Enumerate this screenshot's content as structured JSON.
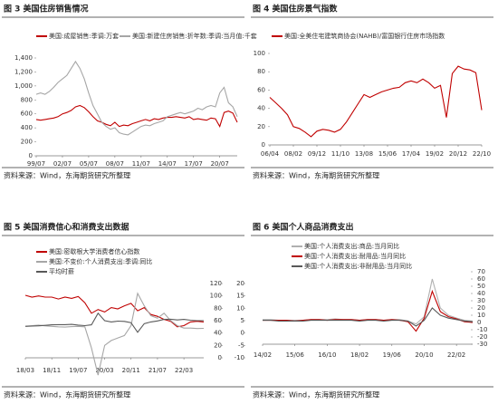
{
  "chart_data": [
    {
      "type": "line",
      "title": "图 3   美国住房销售情况",
      "source": "资料来源：Wind，东海期货研究所整理",
      "categories": [
        "99/07",
        null,
        null,
        null,
        null,
        null,
        "02/07",
        null,
        null,
        null,
        null,
        null,
        "05/07",
        null,
        null,
        null,
        null,
        null,
        "08/07",
        null,
        null,
        null,
        null,
        null,
        "11/07",
        null,
        null,
        null,
        null,
        null,
        "14/07",
        null,
        null,
        null,
        null,
        null,
        "17/07",
        null,
        null,
        null,
        null,
        null,
        "20/07",
        null,
        null,
        null,
        null
      ],
      "ylim": [
        0,
        1400
      ],
      "yticks": [
        0,
        200,
        400,
        600,
        800,
        {
          "value": 1000,
          "label": "1,000"
        },
        {
          "value": 1200,
          "label": "1,200"
        },
        {
          "value": 1400,
          "label": "1,400"
        }
      ],
      "grid": false,
      "legend": "top",
      "series": [
        {
          "name": "美国:成屋销售:季调:万套",
          "color": "#c00000",
          "values": [
            520,
            510,
            520,
            530,
            540,
            560,
            600,
            620,
            650,
            700,
            720,
            690,
            630,
            560,
            500,
            480,
            450,
            430,
            480,
            420,
            440,
            430,
            460,
            480,
            500,
            520,
            500,
            530,
            520,
            540,
            550,
            550,
            560,
            550,
            540,
            560,
            520,
            530,
            520,
            510,
            540,
            530,
            420,
            620,
            640,
            610,
            480
          ]
        },
        {
          "name": "美国:新建住房销售:折年数:季调:当月值:千套",
          "color": "#a6a6a6",
          "values": [
            880,
            900,
            880,
            920,
            980,
            1050,
            1100,
            1150,
            1250,
            1350,
            1250,
            1100,
            900,
            720,
            600,
            480,
            420,
            380,
            400,
            330,
            310,
            300,
            340,
            380,
            420,
            440,
            430,
            460,
            480,
            500,
            560,
            580,
            600,
            620,
            600,
            620,
            640,
            680,
            660,
            700,
            720,
            700,
            900,
            980,
            760,
            700,
            560
          ]
        }
      ]
    },
    {
      "type": "line",
      "title": "图 4   美国住房景气指数",
      "source": "资料来源：Wind，东海期货研究所整理",
      "categories": [
        "06/04",
        null,
        null,
        null,
        "08/02",
        null,
        null,
        null,
        "09/12",
        null,
        null,
        null,
        "11/10",
        null,
        null,
        null,
        "13/08",
        null,
        null,
        null,
        "15/06",
        null,
        null,
        null,
        "17/04",
        null,
        null,
        null,
        "19/02",
        null,
        null,
        null,
        "20/12",
        null,
        null,
        null,
        "22/10"
      ],
      "ylim": [
        0,
        100
      ],
      "yticks": [
        0,
        20,
        40,
        60,
        80,
        100
      ],
      "grid": false,
      "legend": "top",
      "series": [
        {
          "name": "美国:全美住宅建筑商协会(NAHB)/富国银行住房市场指数",
          "color": "#c00000",
          "values": [
            52,
            46,
            40,
            33,
            20,
            18,
            14,
            9,
            15,
            17,
            16,
            14,
            17,
            25,
            35,
            45,
            55,
            52,
            55,
            58,
            60,
            62,
            63,
            68,
            70,
            68,
            72,
            68,
            62,
            65,
            30,
            78,
            86,
            83,
            82,
            79,
            38
          ]
        }
      ]
    },
    {
      "type": "line",
      "title": "图 5   美国消费信心和消费支出数据",
      "source": "资料来源：Wind，东海期货研究所整理",
      "categories": [
        "18/03",
        null,
        null,
        null,
        "18/11",
        null,
        null,
        null,
        "19/07",
        null,
        null,
        null,
        "20/03",
        null,
        null,
        null,
        "20/11",
        null,
        null,
        null,
        "21/07",
        null,
        null,
        null,
        "22/03",
        null,
        null,
        null
      ],
      "ylim": [
        0,
        120
      ],
      "yticks": [
        0,
        20,
        40,
        60,
        80,
        100,
        120
      ],
      "y2lim": [
        -10,
        20
      ],
      "y2ticks": [
        -10,
        -5,
        0,
        5,
        10,
        15,
        20
      ],
      "grid": false,
      "legend": "top-left",
      "series": [
        {
          "name": "美国:密歇根大学消费者信心指数",
          "color": "#c00000",
          "values": [
            101,
            98,
            100,
            98,
            98,
            95,
            98,
            96,
            99,
            89,
            72,
            78,
            74,
            81,
            79,
            84,
            88,
            76,
            81,
            70,
            67,
            62,
            59,
            50,
            52,
            58,
            59,
            58
          ]
        },
        {
          "name": "美国:不变价:个人消费支出:季调:同比",
          "color": "#a6a6a6",
          "axis": "y2",
          "values": [
            2.8,
            3.0,
            3.2,
            2.9,
            2.7,
            2.5,
            2.4,
            2.6,
            2.7,
            2.5,
            -6,
            -17,
            -5,
            -3,
            -2,
            -1,
            3,
            16,
            11,
            7,
            6,
            8,
            5,
            3,
            2,
            2,
            1.8,
            1.9
          ]
        },
        {
          "name": "平均时薪",
          "color": "#595959",
          "axis": "y2",
          "values": [
            2.7,
            2.8,
            2.9,
            3.1,
            3.3,
            3.4,
            3.4,
            3.5,
            3.2,
            3.0,
            3.3,
            8.0,
            5.0,
            4.5,
            4.8,
            4.7,
            4.2,
            0.3,
            3.8,
            4.5,
            4.9,
            5.5,
            5.6,
            5.3,
            5.5,
            5.2,
            5.0,
            5.0
          ]
        }
      ]
    },
    {
      "type": "line",
      "title": "图 6   美国个人商品消费支出",
      "source": "资料来源：Wind，东海期货研究所整理",
      "categories": [
        "14/02",
        null,
        null,
        null,
        "15/06",
        null,
        null,
        null,
        "16/10",
        null,
        null,
        null,
        "18/02",
        null,
        null,
        null,
        "19/06",
        null,
        null,
        null,
        "20/10",
        null,
        null,
        null,
        "22/02",
        null,
        null
      ],
      "ylim": [
        -30,
        70
      ],
      "yticks": [
        -30,
        -20,
        -10,
        0,
        10,
        20,
        30,
        40,
        50,
        60,
        70
      ],
      "grid": false,
      "legend": "top-left",
      "series": [
        {
          "name": "美国:个人消费支出:商品:当月同比",
          "color": "#b0b0b0",
          "values": [
            4,
            4,
            3,
            3,
            3,
            3,
            4,
            4,
            4,
            5,
            4,
            4,
            3,
            4,
            4,
            3,
            4,
            4,
            2,
            -2,
            8,
            60,
            20,
            10,
            6,
            3,
            2
          ]
        },
        {
          "name": "美国:个人消费支出:耐用品:当月同比",
          "color": "#c00000",
          "values": [
            3,
            3,
            3,
            3,
            2,
            3,
            4,
            4,
            3,
            4,
            4,
            4,
            3,
            4,
            4,
            3,
            4,
            3,
            1,
            -12,
            6,
            43,
            15,
            8,
            5,
            1,
            0
          ]
        },
        {
          "name": "美国:个人消费支出:非耐用品:当月同比",
          "color": "#595959",
          "values": [
            3,
            3,
            2,
            2,
            2,
            2,
            3,
            3,
            3,
            3,
            3,
            3,
            2,
            3,
            3,
            2,
            3,
            3,
            2,
            -5,
            3,
            20,
            10,
            6,
            4,
            2,
            1
          ]
        }
      ]
    }
  ]
}
